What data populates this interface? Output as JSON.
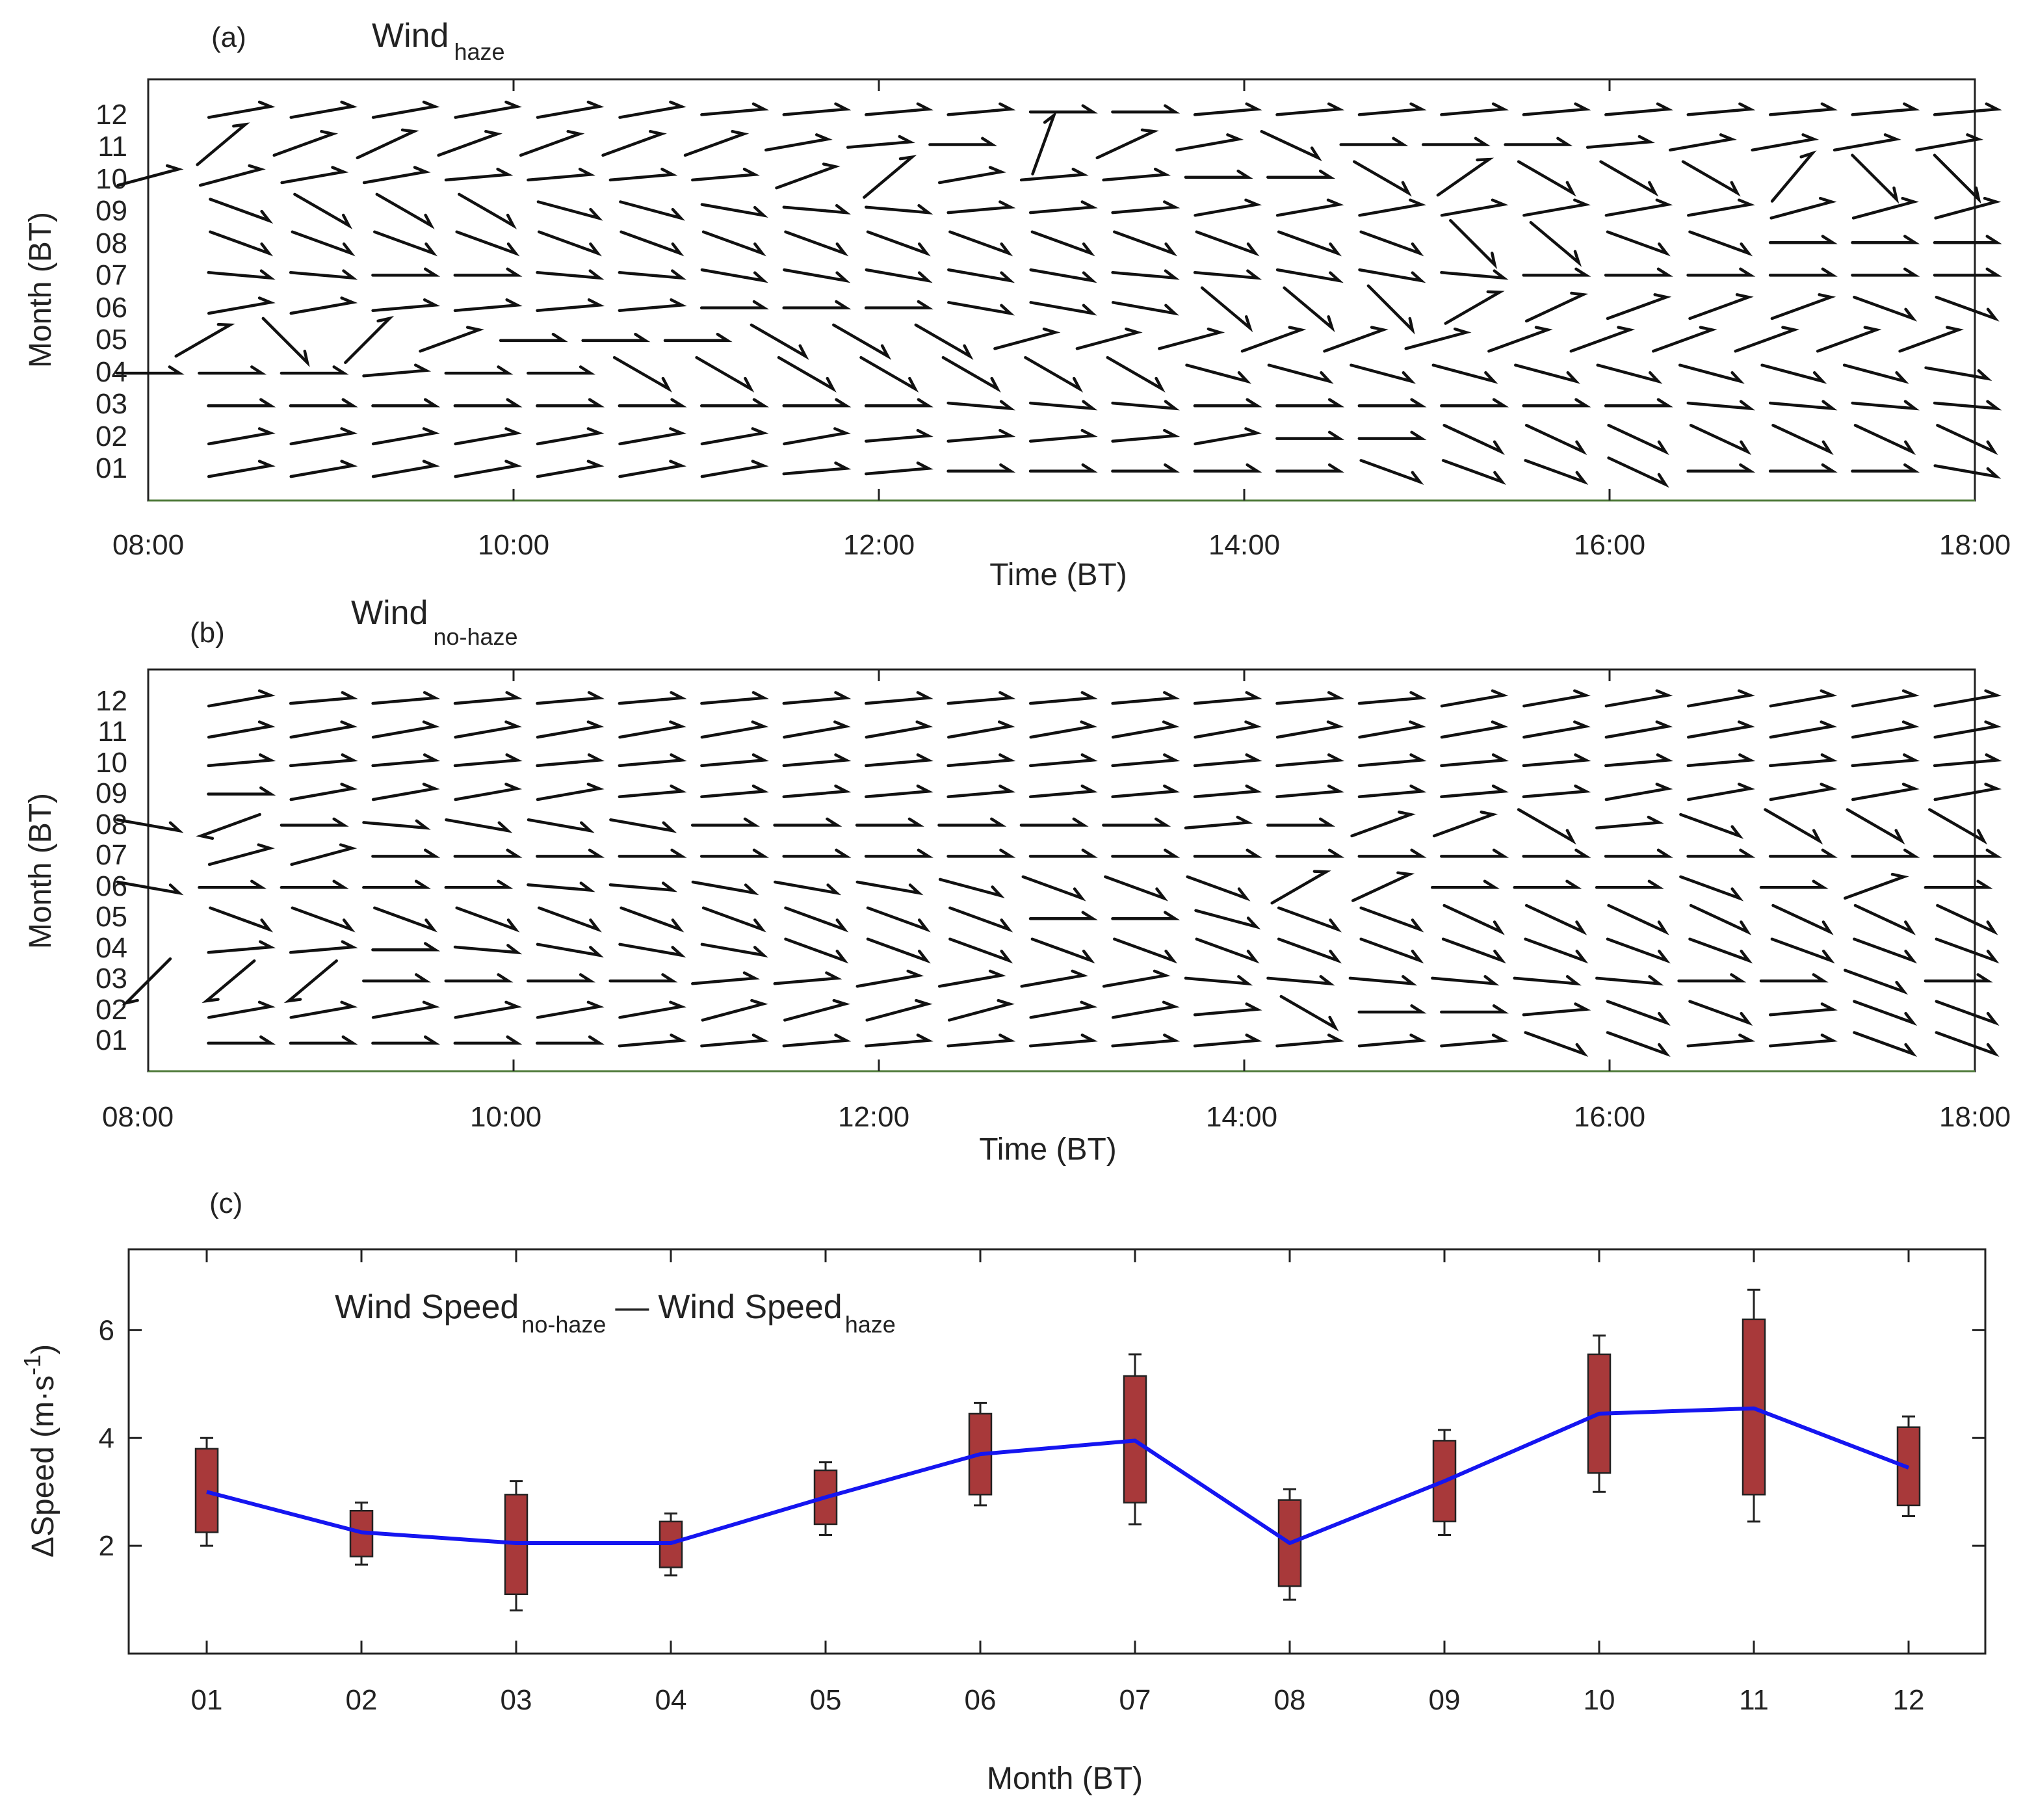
{
  "panel_a": {
    "label": "(a)",
    "title_main": "Wind",
    "title_sub": "haze",
    "x_title": "Time (BT)",
    "y_title": "Month (BT)",
    "x_ticks": [
      "08:00",
      "10:00",
      "12:00",
      "14:00",
      "16:00",
      "18:00"
    ],
    "y_ticks": [
      "01",
      "02",
      "03",
      "04",
      "05",
      "06",
      "07",
      "08",
      "09",
      "10",
      "11",
      "12"
    ]
  },
  "panel_b": {
    "label": "(b)",
    "title_main": "Wind",
    "title_sub": "no-haze",
    "x_title": "Time (BT)",
    "y_title": "Month (BT)",
    "x_ticks": [
      "08:00",
      "10:00",
      "12:00",
      "14:00",
      "16:00",
      "18:00"
    ],
    "y_ticks": [
      "01",
      "02",
      "03",
      "04",
      "05",
      "06",
      "07",
      "08",
      "09",
      "10",
      "11",
      "12"
    ]
  },
  "panel_c": {
    "label": "(c)",
    "legend": {
      "part1": "Wind Speed",
      "sub1": "no-haze",
      "dash": "—",
      "part2": "Wind Speed",
      "sub2": "haze"
    },
    "x_title": "Month (BT)",
    "y_title_main": "ΔSpeed (m·s",
    "y_title_sup": "-1",
    "y_title_close": ")"
  },
  "colors": {
    "median_line": "#1515f0",
    "box_fill": "#a8393a",
    "frame": "#222222",
    "barb": "#111111"
  },
  "chart_data": [
    {
      "type": "quiver",
      "title": "Wind haze",
      "xlabel": "Time (BT)",
      "ylabel": "Month (BT)",
      "x_range_hours": [
        8,
        18
      ],
      "y_range_month": [
        0.1,
        13
      ],
      "note": "wind barbs: direction in degrees (0 = pointing right, 90 = pointing up), one row per month",
      "rows": [
        {
          "month": "01",
          "start": 8.5,
          "step": 0.45,
          "dirs": [
            10,
            10,
            10,
            10,
            10,
            10,
            10,
            5,
            5,
            0,
            0,
            0,
            0,
            0,
            -20,
            -20,
            -20,
            -25,
            0,
            0,
            0,
            -10,
            -35
          ]
        },
        {
          "month": "02",
          "start": 8.5,
          "step": 0.45,
          "dirs": [
            10,
            10,
            10,
            10,
            10,
            10,
            10,
            10,
            5,
            5,
            5,
            5,
            10,
            0,
            0,
            -25,
            -25,
            -25,
            -25,
            -25,
            -25,
            -25,
            -25
          ]
        },
        {
          "month": "03",
          "start": 8.5,
          "step": 0.45,
          "dirs": [
            0,
            0,
            0,
            0,
            0,
            0,
            0,
            0,
            0,
            -5,
            -5,
            -5,
            0,
            0,
            0,
            0,
            0,
            0,
            -5,
            -5,
            -5,
            -5,
            -5
          ]
        },
        {
          "month": "04",
          "start": 8.0,
          "step": 0.45,
          "dirs": [
            0,
            0,
            0,
            5,
            0,
            0,
            -30,
            -30,
            -30,
            -30,
            -30,
            -30,
            -30,
            -15,
            -15,
            -15,
            -15,
            -15,
            -15,
            -15,
            -15,
            -15,
            -10
          ]
        },
        {
          "month": "05",
          "start": 8.3,
          "step": 0.45,
          "dirs": [
            30,
            -45,
            45,
            20,
            0,
            0,
            0,
            -30,
            -30,
            -30,
            15,
            15,
            15,
            20,
            20,
            15,
            20,
            20,
            20,
            20,
            20,
            20,
            20
          ]
        },
        {
          "month": "06",
          "start": 8.5,
          "step": 0.45,
          "dirs": [
            10,
            10,
            5,
            5,
            5,
            5,
            0,
            0,
            0,
            -10,
            -10,
            -10,
            -40,
            -40,
            -45,
            30,
            25,
            20,
            20,
            20,
            -20,
            -20,
            -45
          ]
        },
        {
          "month": "07",
          "start": 8.5,
          "step": 0.45,
          "dirs": [
            -5,
            -5,
            0,
            0,
            -5,
            -5,
            -10,
            -10,
            -10,
            -10,
            -10,
            -5,
            -5,
            -10,
            -10,
            -5,
            0,
            0,
            0,
            0,
            0,
            0,
            0
          ]
        },
        {
          "month": "08",
          "start": 8.5,
          "step": 0.45,
          "dirs": [
            -20,
            -20,
            -20,
            -20,
            -20,
            -20,
            -20,
            -20,
            -20,
            -20,
            -20,
            -20,
            -20,
            -20,
            -20,
            -45,
            -40,
            -20,
            -20,
            0,
            0,
            0,
            5
          ]
        },
        {
          "month": "09",
          "start": 8.5,
          "step": 0.45,
          "dirs": [
            -20,
            -30,
            -30,
            -30,
            -15,
            -15,
            -10,
            -5,
            -5,
            5,
            5,
            5,
            10,
            10,
            10,
            10,
            10,
            10,
            10,
            15,
            15,
            15,
            -5
          ]
        },
        {
          "month": "10",
          "start": 8.0,
          "step": 0.45,
          "dirs": [
            15,
            15,
            10,
            10,
            5,
            5,
            5,
            5,
            20,
            40,
            10,
            5,
            5,
            0,
            0,
            -30,
            35,
            -30,
            -30,
            -30,
            50,
            -45,
            -45
          ]
        },
        {
          "month": "11",
          "start": 8.4,
          "step": 0.45,
          "dirs": [
            40,
            20,
            25,
            20,
            20,
            20,
            20,
            10,
            5,
            0,
            70,
            25,
            10,
            -25,
            0,
            0,
            0,
            5,
            10,
            10,
            10,
            10,
            10
          ]
        },
        {
          "month": "12",
          "start": 8.5,
          "step": 0.45,
          "dirs": [
            10,
            10,
            10,
            10,
            10,
            10,
            5,
            5,
            5,
            5,
            0,
            0,
            5,
            5,
            5,
            5,
            5,
            5,
            5,
            5,
            5,
            5,
            5
          ]
        }
      ]
    },
    {
      "type": "quiver",
      "title": "Wind no-haze",
      "xlabel": "Time (BT)",
      "ylabel": "Month (BT)",
      "x_range_hours": [
        8,
        18
      ],
      "y_range_month": [
        0.1,
        13
      ],
      "note": "wind barbs: direction in degrees (0 = pointing right, 90 = pointing up), one row per month",
      "rows": [
        {
          "month": "01",
          "start": 8.5,
          "step": 0.45,
          "dirs": [
            0,
            0,
            0,
            0,
            0,
            5,
            5,
            5,
            5,
            5,
            5,
            5,
            5,
            5,
            5,
            5,
            -20,
            -20,
            5,
            5,
            -20,
            -20,
            15
          ]
        },
        {
          "month": "02",
          "start": 8.5,
          "step": 0.45,
          "dirs": [
            10,
            10,
            10,
            10,
            10,
            10,
            15,
            15,
            15,
            15,
            10,
            10,
            5,
            -30,
            0,
            0,
            5,
            -20,
            -20,
            5,
            -20,
            -20,
            -25
          ]
        },
        {
          "month": "03",
          "start": 8.0,
          "step": 0.45,
          "dirs": [
            -135,
            -140,
            -140,
            0,
            0,
            0,
            0,
            5,
            5,
            10,
            10,
            10,
            10,
            -5,
            -5,
            -5,
            -5,
            -5,
            -5,
            0,
            0,
            -20,
            0
          ]
        },
        {
          "month": "04",
          "start": 8.5,
          "step": 0.45,
          "dirs": [
            5,
            5,
            0,
            -5,
            -10,
            -10,
            -10,
            -20,
            -20,
            -20,
            -20,
            -20,
            -20,
            -20,
            -20,
            -20,
            -20,
            -20,
            -20,
            -20,
            -20,
            -20,
            -20
          ]
        },
        {
          "month": "05",
          "start": 8.5,
          "step": 0.45,
          "dirs": [
            -20,
            -20,
            -20,
            -20,
            -20,
            -20,
            -20,
            -20,
            -20,
            -20,
            0,
            0,
            -15,
            -20,
            -20,
            -25,
            -25,
            -25,
            -25,
            -25,
            -25,
            -25,
            -20
          ]
        },
        {
          "month": "06",
          "start": 8.0,
          "step": 0.45,
          "dirs": [
            -10,
            0,
            0,
            0,
            0,
            -5,
            -5,
            -10,
            -10,
            -10,
            -15,
            -20,
            -20,
            -20,
            30,
            25,
            0,
            0,
            0,
            -20,
            0,
            20,
            0
          ]
        },
        {
          "month": "07",
          "start": 8.5,
          "step": 0.45,
          "dirs": [
            15,
            15,
            0,
            0,
            0,
            0,
            0,
            0,
            0,
            0,
            0,
            0,
            0,
            0,
            0,
            0,
            0,
            0,
            0,
            0,
            0,
            0,
            0
          ]
        },
        {
          "month": "08",
          "start": 8.0,
          "step": 0.45,
          "dirs": [
            -10,
            -160,
            0,
            -5,
            -10,
            -10,
            -10,
            0,
            0,
            0,
            0,
            0,
            0,
            5,
            0,
            20,
            20,
            -30,
            5,
            -20,
            -30,
            -30,
            -30
          ]
        },
        {
          "month": "09",
          "start": 8.5,
          "step": 0.45,
          "dirs": [
            0,
            10,
            10,
            10,
            10,
            5,
            5,
            5,
            5,
            5,
            5,
            5,
            5,
            5,
            5,
            5,
            5,
            10,
            10,
            10,
            10,
            10,
            5
          ]
        },
        {
          "month": "10",
          "start": 8.5,
          "step": 0.45,
          "dirs": [
            5,
            5,
            5,
            5,
            5,
            5,
            5,
            5,
            5,
            5,
            5,
            5,
            5,
            5,
            5,
            5,
            5,
            5,
            5,
            5,
            5,
            5,
            5
          ]
        },
        {
          "month": "11",
          "start": 8.5,
          "step": 0.45,
          "dirs": [
            10,
            10,
            10,
            10,
            10,
            10,
            10,
            10,
            10,
            10,
            10,
            10,
            10,
            10,
            10,
            10,
            10,
            10,
            10,
            10,
            10,
            10,
            10
          ]
        },
        {
          "month": "12",
          "start": 8.5,
          "step": 0.45,
          "dirs": [
            10,
            5,
            5,
            5,
            5,
            5,
            5,
            5,
            5,
            5,
            5,
            5,
            5,
            5,
            5,
            10,
            10,
            10,
            10,
            10,
            10,
            10,
            10
          ]
        }
      ]
    },
    {
      "type": "box",
      "title": "Wind Speed no-haze — Wind Speed haze",
      "xlabel": "Month (BT)",
      "ylabel": "ΔSpeed (m·s-1)",
      "categories": [
        "01",
        "02",
        "03",
        "04",
        "05",
        "06",
        "07",
        "08",
        "09",
        "10",
        "11",
        "12"
      ],
      "ylim": [
        0,
        7.5
      ],
      "y_ticks": [
        2,
        4,
        6
      ],
      "grid": false,
      "stats": [
        {
          "min": 2.0,
          "q1": 2.25,
          "median": 3.0,
          "q3": 3.8,
          "max": 4.0
        },
        {
          "min": 1.65,
          "q1": 1.8,
          "median": 2.25,
          "q3": 2.65,
          "max": 2.8
        },
        {
          "min": 0.8,
          "q1": 1.1,
          "median": 2.05,
          "q3": 2.95,
          "max": 3.2
        },
        {
          "min": 1.45,
          "q1": 1.6,
          "median": 2.05,
          "q3": 2.45,
          "max": 2.6
        },
        {
          "min": 2.2,
          "q1": 2.4,
          "median": 2.9,
          "q3": 3.4,
          "max": 3.55
        },
        {
          "min": 2.75,
          "q1": 2.95,
          "median": 3.7,
          "q3": 4.45,
          "max": 4.65
        },
        {
          "min": 2.4,
          "q1": 2.8,
          "median": 3.95,
          "q3": 5.15,
          "max": 5.55
        },
        {
          "min": 1.0,
          "q1": 1.25,
          "median": 2.05,
          "q3": 2.85,
          "max": 3.05
        },
        {
          "min": 2.2,
          "q1": 2.45,
          "median": 3.2,
          "q3": 3.95,
          "max": 4.15
        },
        {
          "min": 3.0,
          "q1": 3.35,
          "median": 4.45,
          "q3": 5.55,
          "max": 5.9
        },
        {
          "min": 2.45,
          "q1": 2.95,
          "median": 4.55,
          "q3": 6.2,
          "max": 6.75
        },
        {
          "min": 2.55,
          "q1": 2.75,
          "median": 3.45,
          "q3": 4.2,
          "max": 4.4
        }
      ],
      "median_line": [
        3.0,
        2.25,
        2.05,
        2.05,
        2.9,
        3.7,
        3.95,
        2.05,
        3.2,
        4.45,
        4.55,
        3.45
      ]
    }
  ]
}
